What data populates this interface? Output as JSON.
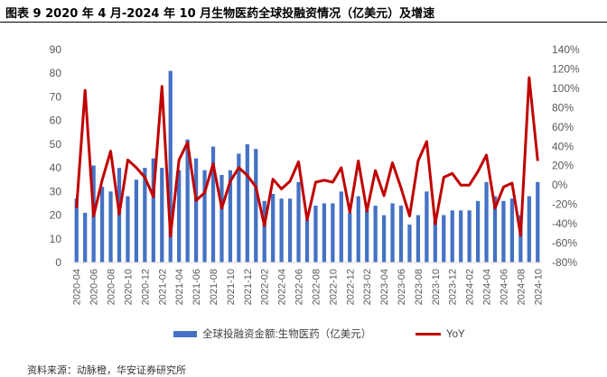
{
  "title": "图表 9 2020 年 4 月-2024 年 10 月生物医药全球投融资情况（亿美元）及增速",
  "source": "资料来源：动脉橙，华安证券研究所",
  "chart_data": {
    "type": "bar",
    "categories": [
      "2020-04",
      "2020-05",
      "2020-06",
      "2020-07",
      "2020-08",
      "2020-09",
      "2020-10",
      "2020-11",
      "2020-12",
      "2021-01",
      "2021-02",
      "2021-03",
      "2021-04",
      "2021-05",
      "2021-06",
      "2021-07",
      "2021-08",
      "2021-09",
      "2021-10",
      "2021-11",
      "2021-12",
      "2022-01",
      "2022-02",
      "2022-03",
      "2022-04",
      "2022-05",
      "2022-06",
      "2022-07",
      "2022-08",
      "2022-09",
      "2022-10",
      "2022-11",
      "2022-12",
      "2023-01",
      "2023-02",
      "2023-03",
      "2023-04",
      "2023-05",
      "2023-06",
      "2023-07",
      "2023-08",
      "2023-09",
      "2023-10",
      "2023-11",
      "2023-12",
      "2024-01",
      "2024-02",
      "2024-03",
      "2024-04",
      "2024-05",
      "2024-06",
      "2024-07",
      "2024-08",
      "2024-09",
      "2024-10"
    ],
    "xtick_labels": [
      "2020-04",
      "2020-06",
      "2020-08",
      "2020-10",
      "2020-12",
      "2021-02",
      "2021-04",
      "2021-06",
      "2021-08",
      "2021-10",
      "2021-12",
      "2022-02",
      "2022-04",
      "2022-06",
      "2022-08",
      "2022-10",
      "2022-12",
      "2023-02",
      "2023-04",
      "2023-06",
      "2023-08",
      "2023-10",
      "2023-12",
      "2024-02",
      "2024-04",
      "2024-06",
      "2024-08",
      "2024-10"
    ],
    "series": [
      {
        "name": "全球投融资金额:生物医药（亿美元）",
        "type": "bar",
        "axis": "left",
        "color": "#4472C4",
        "values": [
          27,
          21,
          41,
          32,
          30,
          40,
          28,
          35,
          40,
          44,
          40,
          81,
          39,
          52,
          44,
          39,
          49,
          37,
          39,
          46,
          50,
          48,
          26,
          29,
          27,
          27,
          34,
          18,
          24,
          25,
          25,
          30,
          21,
          28,
          22,
          24,
          20,
          25,
          24,
          16,
          20,
          30,
          18,
          20,
          22,
          22,
          22,
          26,
          34,
          28,
          26,
          27,
          20,
          28,
          34
        ]
      },
      {
        "name": "YoY",
        "type": "line",
        "axis": "right",
        "color": "#C00000",
        "values": [
          -0.24,
          0.98,
          -0.32,
          0.05,
          0.35,
          -0.3,
          0.26,
          0.18,
          0.08,
          -0.12,
          1.02,
          -0.53,
          0.26,
          0.44,
          -0.16,
          -0.08,
          0.22,
          -0.24,
          0.04,
          0.18,
          0.1,
          -0.02,
          -0.42,
          0.06,
          -0.04,
          0.04,
          0.24,
          -0.36,
          0.03,
          0.05,
          0.03,
          0.18,
          -0.28,
          0.25,
          -0.27,
          0.15,
          -0.11,
          0.23,
          -0.03,
          -0.32,
          0.25,
          0.45,
          -0.4,
          0.08,
          0.12,
          0.0,
          0.0,
          0.14,
          0.31,
          -0.24,
          -0.02,
          0.02,
          -0.52,
          1.11,
          0.25
        ]
      }
    ],
    "yaxis_left": {
      "min": 0,
      "max": 90,
      "step": 10
    },
    "yaxis_right": {
      "min": -0.8,
      "max": 1.4,
      "step": 0.2
    },
    "yaxis_left_ticks": [
      "0",
      "10",
      "20",
      "30",
      "40",
      "50",
      "60",
      "70",
      "80",
      "90"
    ],
    "yaxis_right_ticks": [
      "-80%",
      "-60%",
      "-40%",
      "-20%",
      "0%",
      "20%",
      "40%",
      "60%",
      "80%",
      "100%",
      "120%",
      "140%"
    ],
    "grid": false,
    "legend_position": "bottom"
  }
}
